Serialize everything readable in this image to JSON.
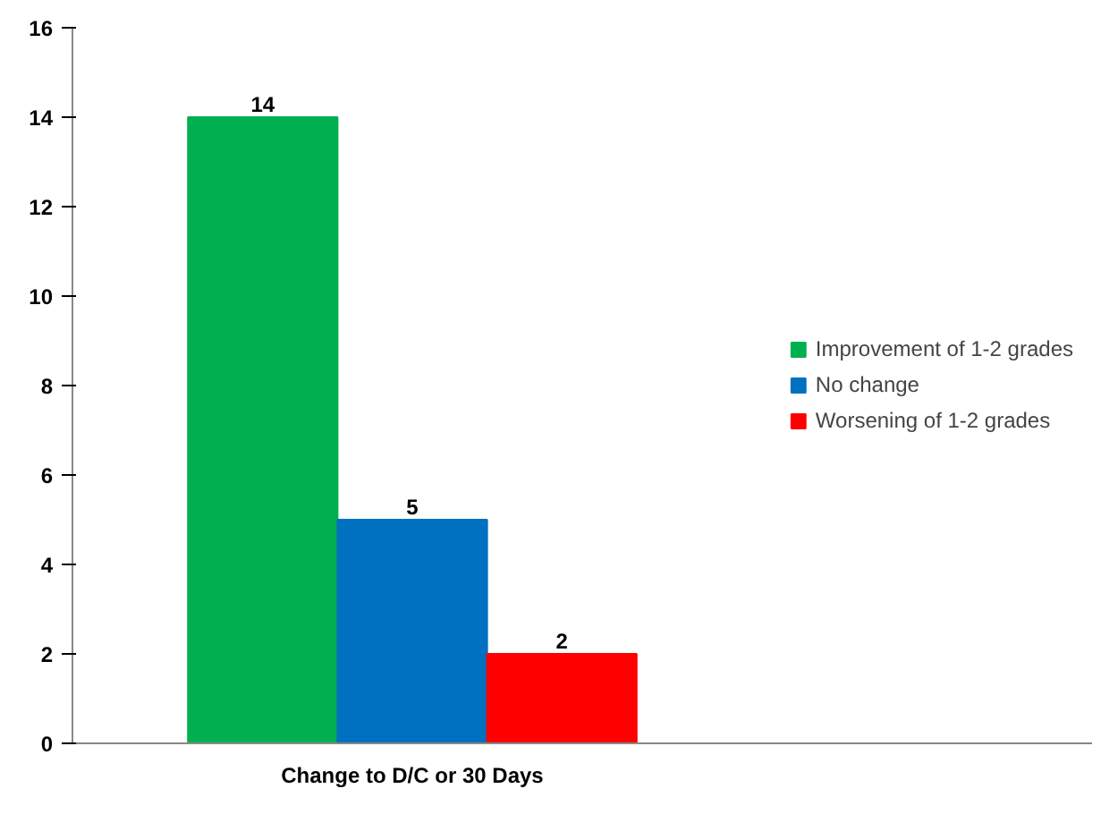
{
  "chart_data": {
    "type": "bar",
    "categories": [
      "Change to D/C or 30 Days"
    ],
    "series": [
      {
        "name": "Improvement of 1-2 grades",
        "color": "#00b050",
        "values": [
          14
        ]
      },
      {
        "name": "No change",
        "color": "#0070c0",
        "values": [
          5
        ]
      },
      {
        "name": "Worsening of 1-2 grades",
        "color": "#ff0000",
        "values": [
          2
        ]
      }
    ],
    "ylim": [
      0,
      16
    ],
    "yticks": [
      0,
      2,
      4,
      6,
      8,
      10,
      12,
      14,
      16
    ],
    "grid": false,
    "legend": "right",
    "data_labels": true
  }
}
